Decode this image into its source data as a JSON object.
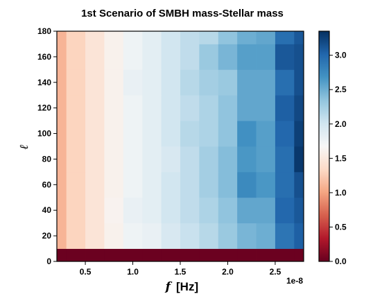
{
  "chart_data": {
    "type": "heatmap",
    "title": "1st Scenario of SMBH mass-Stellar mass",
    "xlabel_symbol": "f",
    "xlabel_unit": "[Hz]",
    "ylabel": "ℓ",
    "x_offset_label": "1e-8",
    "x_ticks": [
      0.5,
      1.0,
      1.5,
      2.0,
      2.5
    ],
    "x_tick_labels": [
      "0.5",
      "1.0",
      "1.5",
      "2.0",
      "2.5"
    ],
    "x_range": [
      0.2,
      2.8
    ],
    "y_ticks": [
      0,
      20,
      40,
      60,
      80,
      100,
      120,
      140,
      160,
      180
    ],
    "y_tick_labels": [
      "0",
      "20",
      "40",
      "60",
      "80",
      "100",
      "120",
      "140",
      "160",
      "180"
    ],
    "y_range": [
      0,
      180
    ],
    "x_edges": [
      0.2,
      0.3,
      0.5,
      0.7,
      0.9,
      1.1,
      1.3,
      1.5,
      1.7,
      1.9,
      2.1,
      2.3,
      2.5,
      2.7,
      2.8
    ],
    "y_edges": [
      0,
      10,
      30,
      50,
      70,
      90,
      110,
      130,
      150,
      170,
      180
    ],
    "z": [
      [
        0.02,
        0.02,
        0.02,
        0.02,
        0.02,
        0.02,
        0.02,
        0.02,
        0.02,
        0.02,
        0.02,
        0.02,
        0.02,
        0.02
      ],
      [
        1.1,
        1.3,
        1.45,
        1.6,
        1.75,
        1.8,
        1.95,
        2.05,
        2.15,
        2.3,
        2.45,
        2.5,
        2.9,
        3.05
      ],
      [
        1.1,
        1.3,
        1.45,
        1.62,
        1.8,
        1.85,
        2.0,
        2.1,
        2.2,
        2.35,
        2.55,
        2.55,
        3.0,
        3.1
      ],
      [
        1.1,
        1.3,
        1.45,
        1.6,
        1.75,
        1.85,
        2.0,
        2.1,
        2.25,
        2.4,
        2.75,
        2.65,
        2.95,
        3.15
      ],
      [
        1.1,
        1.3,
        1.45,
        1.6,
        1.75,
        1.85,
        1.95,
        2.1,
        2.25,
        2.4,
        2.65,
        2.6,
        2.95,
        3.3
      ],
      [
        1.1,
        1.3,
        1.45,
        1.6,
        1.75,
        1.85,
        2.0,
        2.15,
        2.2,
        2.35,
        2.7,
        2.6,
        3.0,
        3.25
      ],
      [
        1.1,
        1.3,
        1.45,
        1.6,
        1.75,
        1.85,
        2.0,
        2.1,
        2.2,
        2.35,
        2.55,
        2.55,
        3.05,
        3.2
      ],
      [
        1.1,
        1.3,
        1.45,
        1.6,
        1.8,
        1.85,
        2.0,
        2.15,
        2.25,
        2.3,
        2.55,
        2.55,
        2.95,
        3.15
      ],
      [
        1.1,
        1.3,
        1.45,
        1.6,
        1.75,
        1.85,
        2.0,
        2.1,
        2.3,
        2.45,
        2.6,
        2.6,
        3.1,
        3.15
      ],
      [
        1.1,
        1.3,
        1.45,
        1.6,
        1.75,
        1.85,
        2.0,
        2.1,
        2.15,
        2.35,
        2.5,
        2.55,
        2.95,
        3.1
      ]
    ],
    "colorbar": {
      "range": [
        0.0,
        3.35
      ],
      "ticks": [
        0.0,
        0.5,
        1.0,
        1.5,
        2.0,
        2.5,
        3.0
      ],
      "tick_labels": [
        "0.0",
        "0.5",
        "1.0",
        "1.5",
        "2.0",
        "2.5",
        "3.0"
      ],
      "colormap": "RdBu"
    }
  }
}
